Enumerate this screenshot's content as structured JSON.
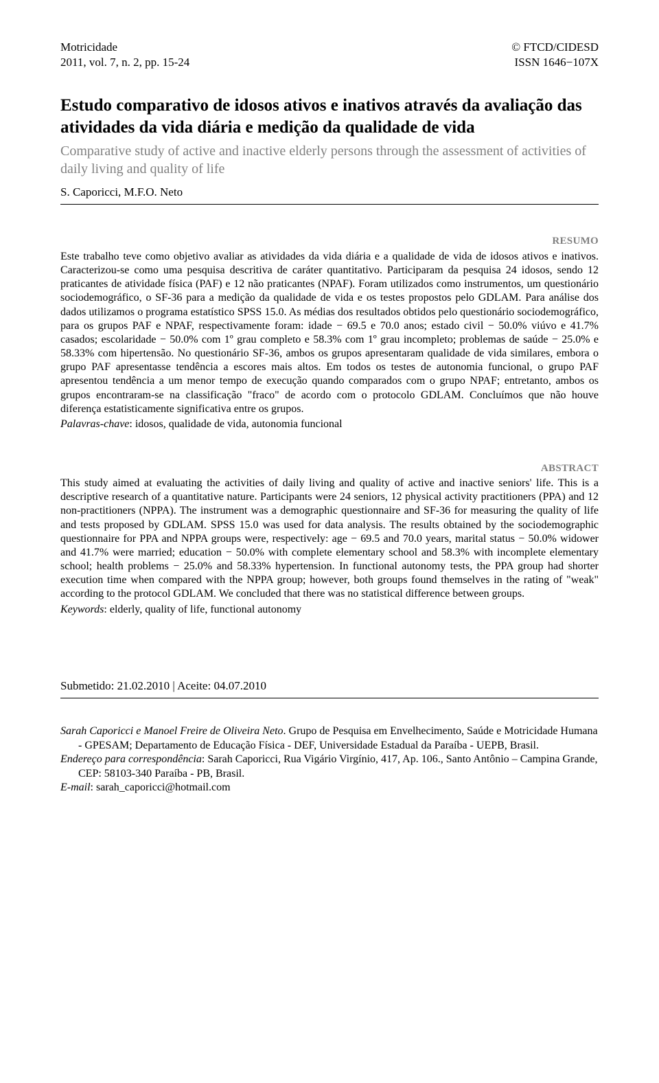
{
  "header": {
    "journal": "Motricidade",
    "issue": "2011, vol. 7, n. 2, pp. 15-24",
    "institution": "© FTCD/CIDESD",
    "issn": "ISSN 1646−107X"
  },
  "title": {
    "pt": "Estudo comparativo de idosos ativos e inativos através da avaliação das atividades da vida diária e medição da qualidade de vida",
    "en": "Comparative study of active and inactive elderly persons through the assessment of activities of daily living and quality of life"
  },
  "authors": "S. Caporicci, M.F.O. Neto",
  "resumo": {
    "label": "RESUMO",
    "text": "Este trabalho teve como objetivo avaliar as atividades da vida diária e a qualidade de vida de idosos ativos e inativos. Caracterizou-se como uma pesquisa descritiva de caráter quantitativo. Participaram da pesquisa 24 idosos, sendo 12 praticantes de atividade física (PAF) e 12 não praticantes (NPAF). Foram utilizados como instrumentos, um questionário sociodemográfico, o SF-36 para a medição da qualidade de vida e os testes propostos pelo GDLAM. Para análise dos dados utilizamos o programa estatístico SPSS 15.0. As médias dos resultados obtidos pelo questionário sociodemográfico, para os grupos PAF e NPAF, respectivamente foram: idade − 69.5 e 70.0 anos; estado civil − 50.0% viúvo e 41.7% casados; escolaridade − 50.0% com 1º grau completo e 58.3% com 1º grau incompleto; problemas de saúde − 25.0% e 58.33% com hipertensão. No questionário SF-36, ambos os grupos apresentaram qualidade de vida similares, embora o grupo PAF apresentasse tendência a escores mais altos. Em todos os testes de autonomia funcional, o grupo PAF apresentou tendência a um menor tempo de execução quando comparados com o grupo NPAF; entretanto, ambos os grupos encontraram-se na classificação \"fraco\" de acordo com o protocolo GDLAM. Concluímos que não houve diferença estatisticamente significativa entre os grupos.",
    "keywords_label": "Palavras-chave",
    "keywords": ": idosos, qualidade de vida, autonomia funcional"
  },
  "abstract": {
    "label": "ABSTRACT",
    "text": "This study aimed at evaluating the activities of daily living and quality of active and inactive seniors' life. This is a descriptive research of a quantitative nature. Participants were 24 seniors, 12 physical activity practitioners (PPA) and 12 non-practitioners (NPPA). The instrument was a demographic questionnaire and SF-36 for measuring the quality of life and tests proposed by GDLAM. SPSS 15.0 was used for data analysis. The results obtained by the sociodemographic questionnaire for PPA and NPPA groups were, respectively: age − 69.5 and 70.0 years, marital status − 50.0% widower and 41.7% were married; education − 50.0% with complete elementary school and 58.3% with incomplete elementary school; health problems − 25.0% and 58.33% hypertension. In functional autonomy tests, the PPA group had shorter execution time when compared with the NPPA group; however, both groups found themselves in the rating of \"weak\" according to the protocol GDLAM. We concluded that there was no statistical difference between groups.",
    "keywords_label": "Keywords",
    "keywords": ": elderly, quality of life, functional autonomy"
  },
  "dates": "Submetido: 21.02.2010   |   Aceite: 04.07.2010",
  "affiliation": {
    "authors": "Sarah Caporicci e Manoel Freire de Oliveira Neto",
    "text": ". Grupo de Pesquisa em Envelhecimento, Saúde e Motricidade Humana - GPESAM; Departamento de Educação Física - DEF, Universidade Estadual da Paraíba - UEPB, Brasil.",
    "corr_label": "Endereço para correspondência",
    "corr_text": ": Sarah Caporicci, Rua Vigário Virgínio, 417, Ap. 106., Santo Antônio – Campina Grande, CEP: 58103-340 Paraíba - PB, Brasil.",
    "email_label": "E-mail",
    "email_text": ": sarah_caporicci@hotmail.com"
  }
}
